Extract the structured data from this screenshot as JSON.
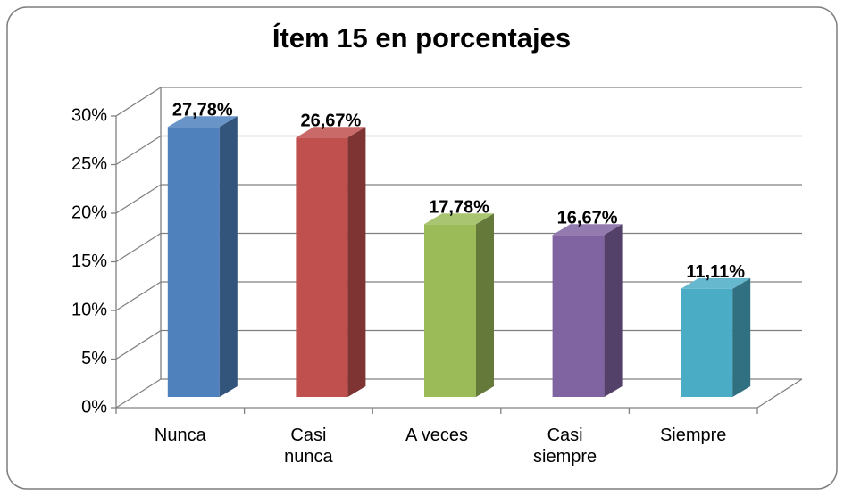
{
  "chart_data": {
    "type": "bar",
    "title": "Ítem 15 en porcentajes",
    "categories": [
      "Nunca",
      "Casi nunca",
      "A veces",
      "Casi siempre",
      "Siempre"
    ],
    "values": [
      27.78,
      26.67,
      17.78,
      16.67,
      11.11
    ],
    "value_labels": [
      "27,78%",
      "26,67%",
      "17,78%",
      "16,67%",
      "11,11%"
    ],
    "colors": [
      "#4f81bd",
      "#c0504d",
      "#9bbb59",
      "#8064a2",
      "#4bacc6"
    ],
    "ylim": [
      0,
      30
    ],
    "yticks": [
      {
        "value": 0,
        "label": "0%"
      },
      {
        "value": 5,
        "label": "5%"
      },
      {
        "value": 10,
        "label": "10%"
      },
      {
        "value": 15,
        "label": "15%"
      },
      {
        "value": 20,
        "label": "20%"
      },
      {
        "value": 25,
        "label": "25%"
      },
      {
        "value": 30,
        "label": "30%"
      }
    ],
    "grid": true
  }
}
